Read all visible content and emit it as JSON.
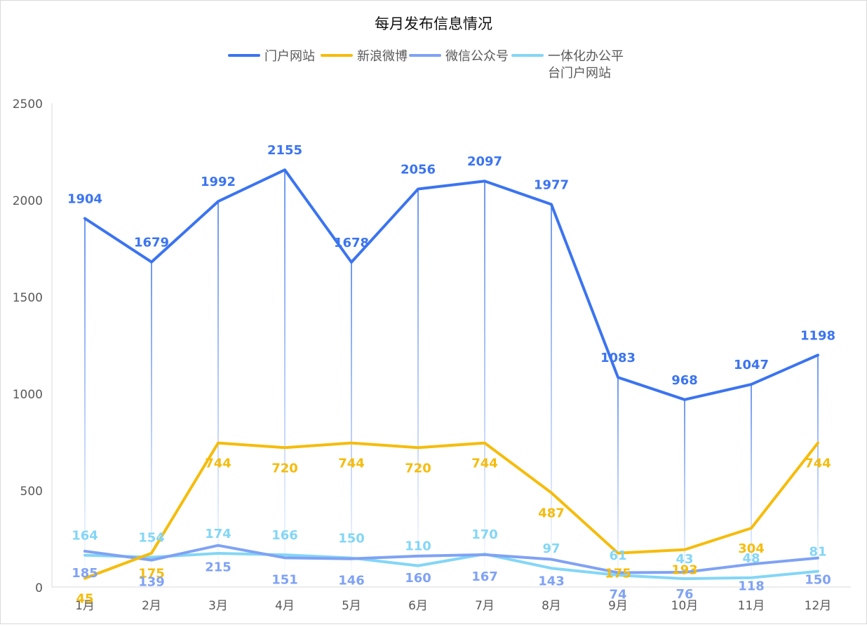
{
  "chart_data": {
    "type": "line",
    "title": "每月发布信息情况",
    "categories": [
      "1月",
      "2月",
      "3月",
      "4月",
      "5月",
      "6月",
      "7月",
      "8月",
      "9月",
      "10月",
      "11月",
      "12月"
    ],
    "ylim": [
      0,
      2500
    ],
    "yticks": [
      0,
      500,
      1000,
      1500,
      2000,
      2500
    ],
    "grid": false,
    "legend_position": "top",
    "series": [
      {
        "name": "门户网站",
        "color": "#3B74F0",
        "values": [
          1904,
          1679,
          1992,
          2155,
          1678,
          2056,
          2097,
          1977,
          1083,
          968,
          1047,
          1198
        ]
      },
      {
        "name": "新浪微博",
        "color": "#F5BC0C",
        "values": [
          45,
          175,
          744,
          720,
          744,
          720,
          744,
          487,
          175,
          193,
          304,
          744
        ]
      },
      {
        "name": "微信公众号",
        "color": "#7FA2F4",
        "values": [
          185,
          139,
          215,
          151,
          146,
          160,
          167,
          143,
          74,
          76,
          118,
          150
        ]
      },
      {
        "name": "一体化办公平台门户网站",
        "color": "#83D6F6",
        "values": [
          164,
          154,
          174,
          166,
          150,
          110,
          170,
          97,
          61,
          43,
          48,
          81
        ]
      }
    ]
  }
}
